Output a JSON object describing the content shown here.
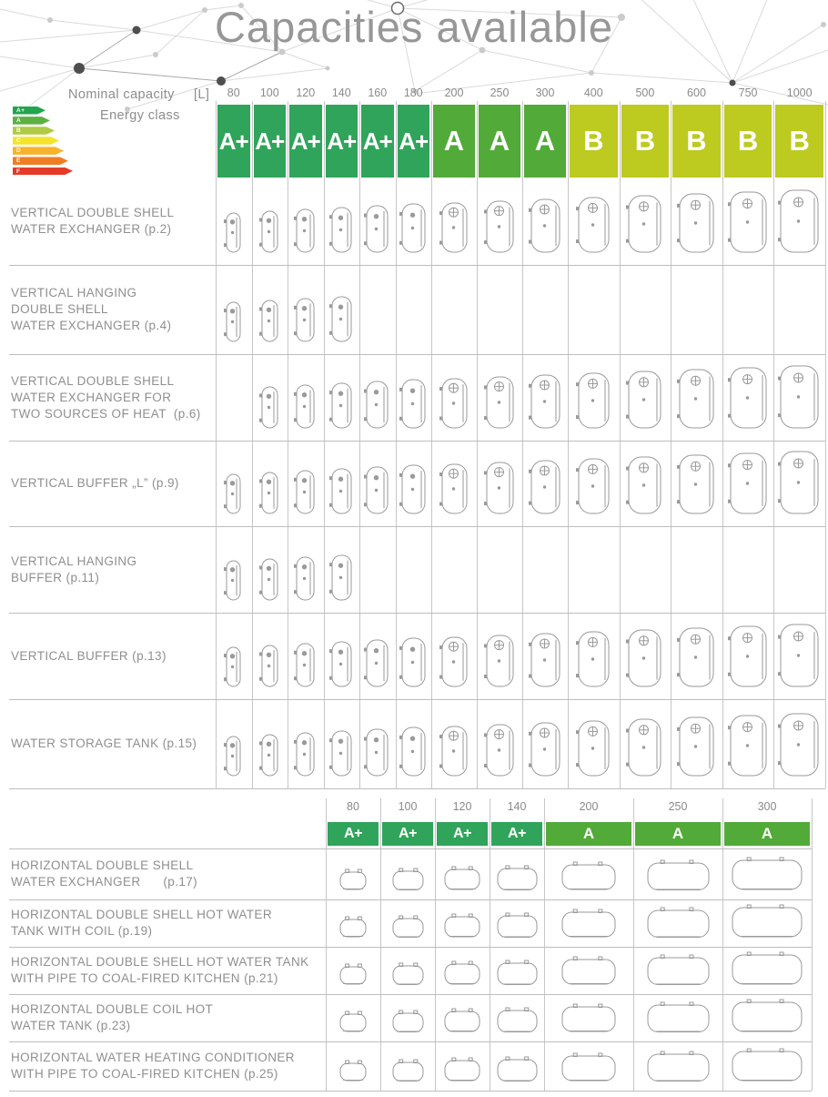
{
  "title": "Capacities available",
  "header": {
    "nominal_capacity_label": "Nominal capacity",
    "unit_label": "[L]",
    "energy_class_label": "Energy class"
  },
  "colors": {
    "class_a_plus": "#2fa45a",
    "class_a": "#52aa39",
    "class_b": "#bdca20",
    "tank_outline": "#9a9a9a",
    "grid_line": "#c6c6c6",
    "text_gray": "#8f8f8f",
    "title_gray": "#979797"
  },
  "energy_scale": [
    {
      "label": "A+",
      "color": "#21a54d"
    },
    {
      "label": "A",
      "color": "#5cb140"
    },
    {
      "label": "B",
      "color": "#b0ca45"
    },
    {
      "label": "C",
      "color": "#f4e32b"
    },
    {
      "label": "D",
      "color": "#f7b32b"
    },
    {
      "label": "E",
      "color": "#ef7d24"
    },
    {
      "label": "F",
      "color": "#e53a28"
    }
  ],
  "table1": {
    "columns": [
      {
        "capacity": "80",
        "energy_class": "A+"
      },
      {
        "capacity": "100",
        "energy_class": "A+"
      },
      {
        "capacity": "120",
        "energy_class": "A+"
      },
      {
        "capacity": "140",
        "energy_class": "A+"
      },
      {
        "capacity": "160",
        "energy_class": "A+"
      },
      {
        "capacity": "180",
        "energy_class": "A+"
      },
      {
        "capacity": "200",
        "energy_class": "A"
      },
      {
        "capacity": "250",
        "energy_class": "A"
      },
      {
        "capacity": "300",
        "energy_class": "A"
      },
      {
        "capacity": "400",
        "energy_class": "B"
      },
      {
        "capacity": "500",
        "energy_class": "B"
      },
      {
        "capacity": "600",
        "energy_class": "B"
      },
      {
        "capacity": "750",
        "energy_class": "B"
      },
      {
        "capacity": "1000",
        "energy_class": "B"
      }
    ],
    "rows": [
      {
        "label_lines": [
          "VERTICAL DOUBLE SHELL",
          "WATER EXCHANGER (p.2)"
        ],
        "available_capacities": [
          "80",
          "100",
          "120",
          "140",
          "160",
          "180",
          "200",
          "250",
          "300",
          "400",
          "500",
          "600",
          "750",
          "1000"
        ]
      },
      {
        "label_lines": [
          "VERTICAL HANGING",
          "DOUBLE SHELL",
          "WATER EXCHANGER (p.4)"
        ],
        "available_capacities": [
          "80",
          "100",
          "120",
          "140"
        ]
      },
      {
        "label_lines": [
          "VERTICAL DOUBLE SHELL",
          "WATER EXCHANGER FOR",
          "TWO SOURCES OF HEAT  (p.6)"
        ],
        "available_capacities": [
          "100",
          "120",
          "140",
          "160",
          "180",
          "200",
          "250",
          "300",
          "400",
          "500",
          "600",
          "750",
          "1000"
        ]
      },
      {
        "label_lines": [
          "VERTICAL BUFFER „L” (p.9)"
        ],
        "available_capacities": [
          "80",
          "100",
          "120",
          "140",
          "160",
          "180",
          "200",
          "250",
          "300",
          "400",
          "500",
          "600",
          "750",
          "1000"
        ]
      },
      {
        "label_lines": [
          "VERTICAL HANGING",
          "BUFFER (p.11)"
        ],
        "available_capacities": [
          "80",
          "100",
          "120",
          "140"
        ]
      },
      {
        "label_lines": [
          "VERTICAL BUFFER (p.13)"
        ],
        "available_capacities": [
          "80",
          "100",
          "120",
          "140",
          "160",
          "180",
          "200",
          "250",
          "300",
          "400",
          "500",
          "600",
          "750",
          "1000"
        ]
      },
      {
        "label_lines": [
          "WATER STORAGE TANK (p.15)"
        ],
        "available_capacities": [
          "80",
          "100",
          "120",
          "140",
          "160",
          "180",
          "200",
          "250",
          "300",
          "400",
          "500",
          "600",
          "750",
          "1000"
        ]
      }
    ]
  },
  "table2": {
    "columns": [
      {
        "capacity": "80",
        "energy_class": "A+"
      },
      {
        "capacity": "100",
        "energy_class": "A+"
      },
      {
        "capacity": "120",
        "energy_class": "A+"
      },
      {
        "capacity": "140",
        "energy_class": "A+"
      },
      {
        "capacity": "200",
        "energy_class": "A"
      },
      {
        "capacity": "250",
        "energy_class": "A"
      },
      {
        "capacity": "300",
        "energy_class": "A"
      }
    ],
    "rows": [
      {
        "label_lines": [
          "HORIZONTAL DOUBLE SHELL",
          "WATER EXCHANGER      (p.17)"
        ],
        "available_capacities": [
          "80",
          "100",
          "120",
          "140",
          "200",
          "250",
          "300"
        ]
      },
      {
        "label_lines": [
          "HORIZONTAL DOUBLE SHELL HOT WATER",
          "TANK WITH COIL (p.19)"
        ],
        "available_capacities": [
          "80",
          "100",
          "120",
          "140",
          "200",
          "250",
          "300"
        ]
      },
      {
        "label_lines": [
          "HORIZONTAL DOUBLE SHELL HOT WATER TANK",
          "WITH PIPE TO COAL-FIRED KITCHEN (p.21)"
        ],
        "available_capacities": [
          "80",
          "100",
          "120",
          "140",
          "200",
          "250",
          "300"
        ]
      },
      {
        "label_lines": [
          "HORIZONTAL DOUBLE COIL HOT",
          "WATER TANK (p.23)"
        ],
        "available_capacities": [
          "80",
          "100",
          "120",
          "140",
          "200",
          "250",
          "300"
        ]
      },
      {
        "label_lines": [
          "HORIZONTAL WATER HEATING CONDITIONER",
          "WITH PIPE TO COAL-FIRED KITCHEN (p.25)"
        ],
        "available_capacities": [
          "80",
          "100",
          "120",
          "140",
          "200",
          "250",
          "300"
        ]
      }
    ]
  }
}
